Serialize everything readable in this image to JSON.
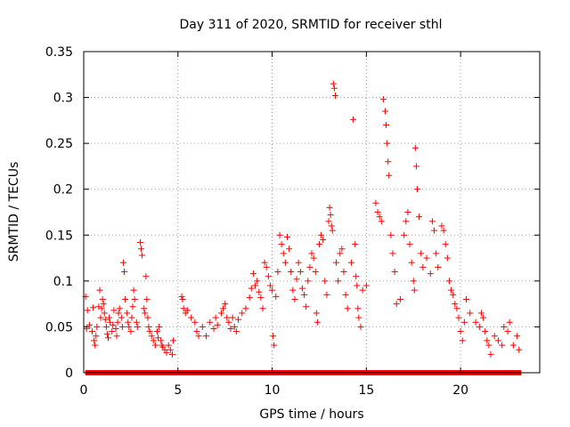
{
  "chart_data": {
    "type": "scatter",
    "title": "Day 311 of 2020, SRMTID for receiver sthl",
    "xlabel": "GPS time / hours",
    "ylabel": "SRMTID / TECUs",
    "xlim": [
      0,
      24.2
    ],
    "ylim": [
      0,
      0.35
    ],
    "xticks": [
      0,
      5,
      10,
      15,
      20
    ],
    "yticks": [
      0,
      0.05,
      0.1,
      0.15,
      0.2,
      0.25,
      0.3,
      0.35
    ],
    "ytick_labels": [
      "0",
      "0.05",
      "0.1",
      "0.15",
      "0.2",
      "0.25",
      "0.3",
      "0.35"
    ],
    "xtick_labels": [
      "0",
      "5",
      "10",
      "15",
      "20"
    ],
    "grid": true,
    "marker": "+",
    "color": "#ff0000",
    "series": [
      {
        "name": "SRMTID",
        "points": [
          [
            0.1,
            0.083
          ],
          [
            0.15,
            0.048
          ],
          [
            0.2,
            0.068
          ],
          [
            0.3,
            0.052
          ],
          [
            0.45,
            0.045
          ],
          [
            0.5,
            0.071
          ],
          [
            0.55,
            0.035
          ],
          [
            0.6,
            0.03
          ],
          [
            0.65,
            0.04
          ],
          [
            0.7,
            0.05
          ],
          [
            0.8,
            0.072
          ],
          [
            0.85,
            0.09
          ],
          [
            0.9,
            0.06
          ],
          [
            0.95,
            0.07
          ],
          [
            1.0,
            0.08
          ],
          [
            1.05,
            0.075
          ],
          [
            1.1,
            0.065
          ],
          [
            1.15,
            0.058
          ],
          [
            1.2,
            0.05
          ],
          [
            1.25,
            0.042
          ],
          [
            1.3,
            0.038
          ],
          [
            1.35,
            0.06
          ],
          [
            1.4,
            0.055
          ],
          [
            1.5,
            0.045
          ],
          [
            1.55,
            0.052
          ],
          [
            1.6,
            0.068
          ],
          [
            1.7,
            0.048
          ],
          [
            1.75,
            0.04
          ],
          [
            1.8,
            0.055
          ],
          [
            1.85,
            0.065
          ],
          [
            1.9,
            0.07
          ],
          [
            2.0,
            0.06
          ],
          [
            2.05,
            0.05
          ],
          [
            2.1,
            0.12
          ],
          [
            2.15,
            0.11
          ],
          [
            2.2,
            0.08
          ],
          [
            2.3,
            0.065
          ],
          [
            2.35,
            0.055
          ],
          [
            2.4,
            0.05
          ],
          [
            2.5,
            0.045
          ],
          [
            2.55,
            0.06
          ],
          [
            2.6,
            0.072
          ],
          [
            2.65,
            0.09
          ],
          [
            2.7,
            0.08
          ],
          [
            2.8,
            0.055
          ],
          [
            2.85,
            0.05
          ],
          [
            3.0,
            0.142
          ],
          [
            3.05,
            0.135
          ],
          [
            3.1,
            0.128
          ],
          [
            3.2,
            0.07
          ],
          [
            3.25,
            0.065
          ],
          [
            3.3,
            0.105
          ],
          [
            3.35,
            0.08
          ],
          [
            3.4,
            0.06
          ],
          [
            3.45,
            0.05
          ],
          [
            3.5,
            0.045
          ],
          [
            3.6,
            0.04
          ],
          [
            3.7,
            0.035
          ],
          [
            3.8,
            0.03
          ],
          [
            3.9,
            0.045
          ],
          [
            3.95,
            0.038
          ],
          [
            4.0,
            0.05
          ],
          [
            4.1,
            0.035
          ],
          [
            4.15,
            0.03
          ],
          [
            4.2,
            0.028
          ],
          [
            4.3,
            0.025
          ],
          [
            4.4,
            0.022
          ],
          [
            4.5,
            0.03
          ],
          [
            4.6,
            0.025
          ],
          [
            4.7,
            0.02
          ],
          [
            4.75,
            0.035
          ],
          [
            5.2,
            0.083
          ],
          [
            5.25,
            0.08
          ],
          [
            5.3,
            0.07
          ],
          [
            5.4,
            0.065
          ],
          [
            5.5,
            0.068
          ],
          [
            5.7,
            0.06
          ],
          [
            5.9,
            0.055
          ],
          [
            6.0,
            0.045
          ],
          [
            6.1,
            0.04
          ],
          [
            6.3,
            0.05
          ],
          [
            6.5,
            0.04
          ],
          [
            6.7,
            0.055
          ],
          [
            6.9,
            0.048
          ],
          [
            7.0,
            0.06
          ],
          [
            7.1,
            0.052
          ],
          [
            7.3,
            0.065
          ],
          [
            7.4,
            0.07
          ],
          [
            7.5,
            0.075
          ],
          [
            7.6,
            0.06
          ],
          [
            7.7,
            0.055
          ],
          [
            7.8,
            0.048
          ],
          [
            7.9,
            0.06
          ],
          [
            8.0,
            0.05
          ],
          [
            8.1,
            0.045
          ],
          [
            8.2,
            0.058
          ],
          [
            8.4,
            0.065
          ],
          [
            8.6,
            0.07
          ],
          [
            8.8,
            0.082
          ],
          [
            8.9,
            0.092
          ],
          [
            9.0,
            0.108
          ],
          [
            9.1,
            0.095
          ],
          [
            9.2,
            0.1
          ],
          [
            9.3,
            0.088
          ],
          [
            9.4,
            0.082
          ],
          [
            9.5,
            0.07
          ],
          [
            9.6,
            0.12
          ],
          [
            9.7,
            0.115
          ],
          [
            9.8,
            0.105
          ],
          [
            9.9,
            0.095
          ],
          [
            10.0,
            0.09
          ],
          [
            10.05,
            0.04
          ],
          [
            10.1,
            0.03
          ],
          [
            10.2,
            0.083
          ],
          [
            10.3,
            0.11
          ],
          [
            10.4,
            0.15
          ],
          [
            10.5,
            0.14
          ],
          [
            10.6,
            0.13
          ],
          [
            10.7,
            0.12
          ],
          [
            10.8,
            0.148
          ],
          [
            10.9,
            0.135
          ],
          [
            11.0,
            0.11
          ],
          [
            11.1,
            0.09
          ],
          [
            11.2,
            0.08
          ],
          [
            11.3,
            0.102
          ],
          [
            11.4,
            0.12
          ],
          [
            11.5,
            0.11
          ],
          [
            11.6,
            0.092
          ],
          [
            11.7,
            0.085
          ],
          [
            11.8,
            0.072
          ],
          [
            11.9,
            0.1
          ],
          [
            12.0,
            0.115
          ],
          [
            12.1,
            0.13
          ],
          [
            12.2,
            0.125
          ],
          [
            12.3,
            0.11
          ],
          [
            12.35,
            0.065
          ],
          [
            12.4,
            0.055
          ],
          [
            12.5,
            0.14
          ],
          [
            12.6,
            0.15
          ],
          [
            12.7,
            0.145
          ],
          [
            12.8,
            0.1
          ],
          [
            12.9,
            0.085
          ],
          [
            13.0,
            0.165
          ],
          [
            13.05,
            0.18
          ],
          [
            13.1,
            0.172
          ],
          [
            13.15,
            0.16
          ],
          [
            13.2,
            0.155
          ],
          [
            13.25,
            0.315
          ],
          [
            13.3,
            0.31
          ],
          [
            13.35,
            0.302
          ],
          [
            13.4,
            0.12
          ],
          [
            13.5,
            0.1
          ],
          [
            13.6,
            0.13
          ],
          [
            13.7,
            0.135
          ],
          [
            13.8,
            0.11
          ],
          [
            13.9,
            0.085
          ],
          [
            14.0,
            0.07
          ],
          [
            14.2,
            0.12
          ],
          [
            14.3,
            0.276
          ],
          [
            14.4,
            0.14
          ],
          [
            14.45,
            0.105
          ],
          [
            14.5,
            0.095
          ],
          [
            14.55,
            0.07
          ],
          [
            14.6,
            0.06
          ],
          [
            14.7,
            0.05
          ],
          [
            14.8,
            0.09
          ],
          [
            15.0,
            0.095
          ],
          [
            15.5,
            0.185
          ],
          [
            15.6,
            0.175
          ],
          [
            15.7,
            0.17
          ],
          [
            15.8,
            0.165
          ],
          [
            15.9,
            0.298
          ],
          [
            16.0,
            0.285
          ],
          [
            16.05,
            0.27
          ],
          [
            16.1,
            0.25
          ],
          [
            16.15,
            0.23
          ],
          [
            16.2,
            0.215
          ],
          [
            16.3,
            0.15
          ],
          [
            16.4,
            0.13
          ],
          [
            16.5,
            0.11
          ],
          [
            16.6,
            0.075
          ],
          [
            16.8,
            0.08
          ],
          [
            17.0,
            0.15
          ],
          [
            17.1,
            0.165
          ],
          [
            17.2,
            0.175
          ],
          [
            17.3,
            0.14
          ],
          [
            17.4,
            0.12
          ],
          [
            17.5,
            0.1
          ],
          [
            17.55,
            0.09
          ],
          [
            17.6,
            0.245
          ],
          [
            17.65,
            0.225
          ],
          [
            17.7,
            0.2
          ],
          [
            17.8,
            0.17
          ],
          [
            17.9,
            0.13
          ],
          [
            18.0,
            0.115
          ],
          [
            18.2,
            0.125
          ],
          [
            18.4,
            0.108
          ],
          [
            18.5,
            0.165
          ],
          [
            18.6,
            0.155
          ],
          [
            18.7,
            0.13
          ],
          [
            18.8,
            0.115
          ],
          [
            19.0,
            0.16
          ],
          [
            19.1,
            0.155
          ],
          [
            19.2,
            0.14
          ],
          [
            19.3,
            0.125
          ],
          [
            19.4,
            0.1
          ],
          [
            19.5,
            0.09
          ],
          [
            19.6,
            0.085
          ],
          [
            19.7,
            0.075
          ],
          [
            19.8,
            0.07
          ],
          [
            19.9,
            0.06
          ],
          [
            20.0,
            0.045
          ],
          [
            20.1,
            0.035
          ],
          [
            20.2,
            0.055
          ],
          [
            20.3,
            0.08
          ],
          [
            20.5,
            0.065
          ],
          [
            20.8,
            0.055
          ],
          [
            21.0,
            0.05
          ],
          [
            21.1,
            0.065
          ],
          [
            21.2,
            0.06
          ],
          [
            21.3,
            0.045
          ],
          [
            21.4,
            0.035
          ],
          [
            21.5,
            0.03
          ],
          [
            21.6,
            0.02
          ],
          [
            21.8,
            0.04
          ],
          [
            22.0,
            0.035
          ],
          [
            22.2,
            0.03
          ],
          [
            22.3,
            0.05
          ],
          [
            22.5,
            0.045
          ],
          [
            22.6,
            0.055
          ],
          [
            22.8,
            0.03
          ],
          [
            23.0,
            0.04
          ],
          [
            23.1,
            0.025
          ]
        ],
        "zero_markers": [
          [
            0.2,
            0.3,
            0.5,
            0.6,
            0.8,
            1.0,
            1.2,
            1.3,
            1.5,
            1.7,
            1.9,
            2.0,
            2.2,
            2.4,
            2.6,
            2.8,
            3.0,
            3.2,
            3.4,
            3.6,
            3.8,
            4.0,
            4.2,
            4.4,
            4.6,
            4.8,
            5.0,
            5.2,
            5.4,
            5.6,
            5.8,
            6.0,
            6.2,
            6.4,
            6.6,
            6.8,
            7.0,
            7.2,
            7.4,
            7.6,
            7.8,
            8.0,
            8.2,
            8.4,
            8.6,
            8.8,
            9.0,
            9.2,
            9.4,
            9.6,
            9.8,
            10.0,
            10.2,
            10.4,
            10.6,
            10.8,
            11.0,
            11.2,
            11.4,
            11.6,
            11.8,
            12.0,
            12.2,
            12.4,
            12.6,
            12.8,
            13.0,
            13.2,
            13.4,
            13.6,
            13.8,
            14.0,
            14.2,
            14.4,
            14.6,
            14.8,
            15.0,
            15.2,
            15.4,
            15.6,
            15.8,
            16.0,
            16.2,
            16.4,
            16.6,
            16.8,
            17.0,
            17.2,
            17.4,
            17.6,
            17.8,
            18.0,
            18.2,
            18.4,
            18.6,
            18.8,
            19.0,
            19.2,
            19.4,
            19.6,
            19.8,
            20.0,
            20.2,
            20.4,
            20.6,
            20.8,
            21.0,
            21.2,
            21.4,
            21.6,
            21.8,
            22.0,
            22.2,
            22.4,
            22.6,
            22.8,
            23.0,
            23.1
          ]
        ]
      }
    ]
  }
}
